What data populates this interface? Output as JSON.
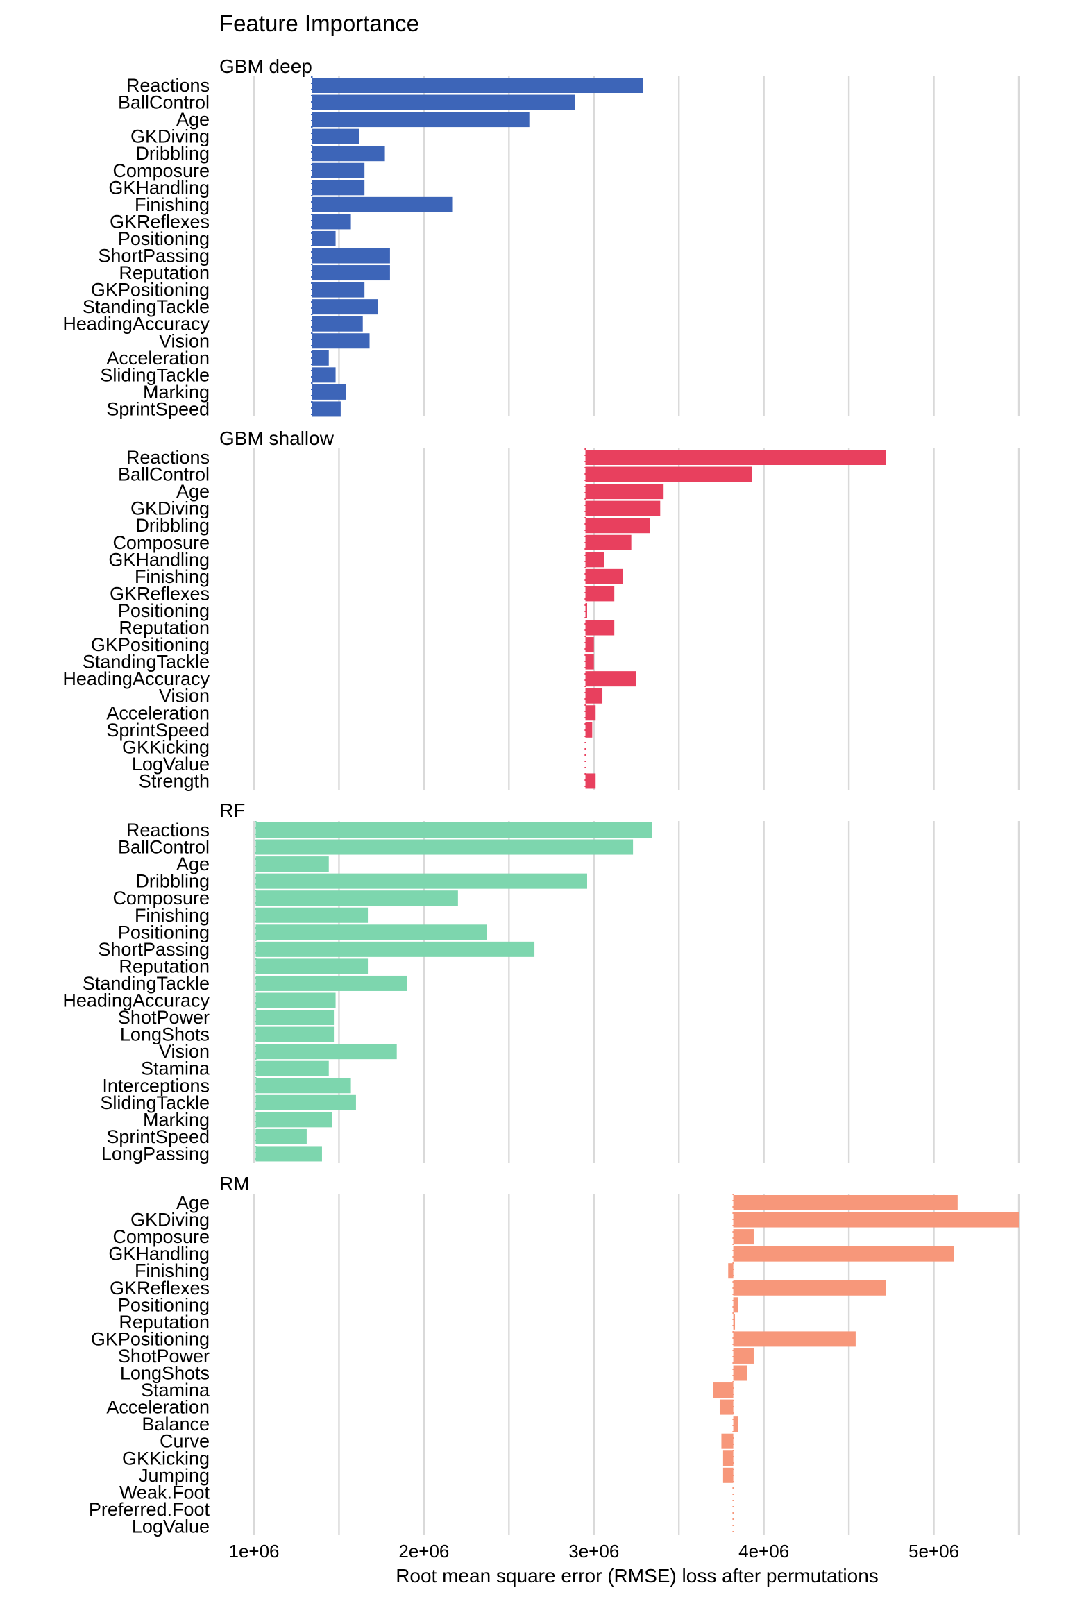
{
  "chart_data": {
    "type": "bar",
    "orientation": "horizontal",
    "title": "Feature Importance",
    "xlabel": "Root mean square error (RMSE) loss after permutations",
    "ylabel": "",
    "xlim": [
      900000,
      5500000
    ],
    "x_ticks": [
      1000000,
      2000000,
      3000000,
      4000000,
      5000000
    ],
    "x_tick_labels": [
      "1e+06",
      "2e+06",
      "3e+06",
      "4e+06",
      "5e+06"
    ],
    "grid": "vertical",
    "panels": [
      {
        "name": "GBM deep",
        "color": "#3D65B8",
        "baseline": 1340000,
        "categories": [
          "Reactions",
          "BallControl",
          "Age",
          "GKDiving",
          "Dribbling",
          "Composure",
          "GKHandling",
          "Finishing",
          "GKReflexes",
          "Positioning",
          "ShortPassing",
          "Reputation",
          "GKPositioning",
          "StandingTackle",
          "HeadingAccuracy",
          "Vision",
          "Acceleration",
          "SlidingTackle",
          "Marking",
          "SprintSpeed"
        ],
        "values": [
          3290000,
          2890000,
          2620000,
          1620000,
          1770000,
          1650000,
          1650000,
          2170000,
          1570000,
          1480000,
          1800000,
          1800000,
          1650000,
          1730000,
          1640000,
          1680000,
          1440000,
          1480000,
          1540000,
          1510000
        ]
      },
      {
        "name": "GBM shallow",
        "color": "#E8405E",
        "baseline": 2950000,
        "categories": [
          "Reactions",
          "BallControl",
          "Age",
          "GKDiving",
          "Dribbling",
          "Composure",
          "GKHandling",
          "Finishing",
          "GKReflexes",
          "Positioning",
          "Reputation",
          "GKPositioning",
          "StandingTackle",
          "HeadingAccuracy",
          "Vision",
          "Acceleration",
          "SprintSpeed",
          "GKKicking",
          "LogValue",
          "Strength"
        ],
        "values": [
          4720000,
          3930000,
          3410000,
          3390000,
          3330000,
          3220000,
          3060000,
          3170000,
          3120000,
          2960000,
          3120000,
          3000000,
          3000000,
          3250000,
          3050000,
          3010000,
          2990000,
          2950000,
          2950000,
          3010000
        ]
      },
      {
        "name": "RF",
        "color": "#7DD6AE",
        "baseline": 1010000,
        "categories": [
          "Reactions",
          "BallControl",
          "Age",
          "Dribbling",
          "Composure",
          "Finishing",
          "Positioning",
          "ShortPassing",
          "Reputation",
          "StandingTackle",
          "HeadingAccuracy",
          "ShotPower",
          "LongShots",
          "Vision",
          "Stamina",
          "Interceptions",
          "SlidingTackle",
          "Marking",
          "SprintSpeed",
          "LongPassing"
        ],
        "values": [
          3340000,
          3230000,
          1440000,
          2960000,
          2200000,
          1670000,
          2370000,
          2650000,
          1670000,
          1900000,
          1480000,
          1470000,
          1470000,
          1840000,
          1440000,
          1570000,
          1600000,
          1460000,
          1310000,
          1400000
        ]
      },
      {
        "name": "RM",
        "color": "#F7977A",
        "baseline": 3820000,
        "categories": [
          "Age",
          "GKDiving",
          "Composure",
          "GKHandling",
          "Finishing",
          "GKReflexes",
          "Positioning",
          "Reputation",
          "GKPositioning",
          "ShotPower",
          "LongShots",
          "Stamina",
          "Acceleration",
          "Balance",
          "Curve",
          "GKKicking",
          "Jumping",
          "Weak.Foot",
          "Preferred.Foot",
          "LogValue"
        ],
        "values": [
          5140000,
          5500000,
          3940000,
          5120000,
          3790000,
          4720000,
          3850000,
          3830000,
          4540000,
          3940000,
          3900000,
          3700000,
          3740000,
          3850000,
          3750000,
          3760000,
          3760000,
          3820000,
          3820000,
          3820000
        ]
      }
    ]
  }
}
